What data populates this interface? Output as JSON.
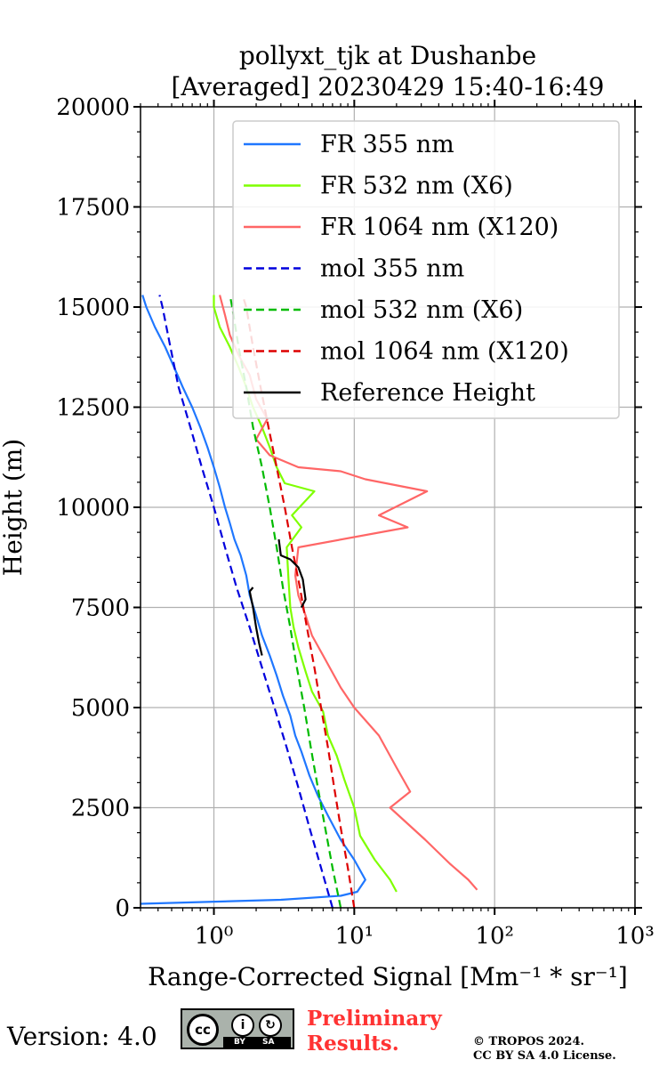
{
  "chart_data": {
    "type": "line",
    "title": [
      "pollyxt_tjk at Dushanbe",
      "[Averaged] 20230429 15:40-16:49"
    ],
    "xlabel": "Range-Corrected Signal [Mm⁻¹ * sr⁻¹]",
    "ylabel": "Height (m)",
    "xscale": "log",
    "xlim": [
      0.3,
      1000
    ],
    "ylim": [
      0,
      20000
    ],
    "xticks": [
      {
        "value": 1,
        "label": "10⁰"
      },
      {
        "value": 10,
        "label": "10¹"
      },
      {
        "value": 100,
        "label": "10²"
      },
      {
        "value": 1000,
        "label": "10³"
      }
    ],
    "yticks": [
      0,
      2500,
      5000,
      7500,
      10000,
      12500,
      15000,
      17500,
      20000
    ],
    "grid": true,
    "legend_position": "top-right",
    "series": [
      {
        "name": "FR 355 nm",
        "color": "#1f77ff",
        "style": "solid",
        "points": [
          [
            0.3,
            100
          ],
          [
            3,
            200
          ],
          [
            8,
            300
          ],
          [
            10.5,
            400
          ],
          [
            12,
            700
          ],
          [
            10,
            1200
          ],
          [
            8,
            1700
          ],
          [
            6.5,
            2300
          ],
          [
            5.5,
            2800
          ],
          [
            4.8,
            3300
          ],
          [
            4.2,
            3900
          ],
          [
            3.8,
            4300
          ],
          [
            3.5,
            4800
          ],
          [
            3.1,
            5300
          ],
          [
            2.8,
            5800
          ],
          [
            2.5,
            6300
          ],
          [
            2.2,
            6800
          ],
          [
            2.0,
            7300
          ],
          [
            1.8,
            7800
          ],
          [
            1.7,
            8300
          ],
          [
            1.55,
            8800
          ],
          [
            1.4,
            9200
          ],
          [
            1.3,
            9600
          ],
          [
            1.2,
            10000
          ],
          [
            1.1,
            10500
          ],
          [
            1.0,
            11000
          ],
          [
            0.9,
            11500
          ],
          [
            0.8,
            12000
          ],
          [
            0.7,
            12500
          ],
          [
            0.6,
            13000
          ],
          [
            0.52,
            13500
          ],
          [
            0.45,
            14000
          ],
          [
            0.38,
            14500
          ],
          [
            0.33,
            15000
          ],
          [
            0.31,
            15300
          ]
        ]
      },
      {
        "name": "FR 532 nm (X6)",
        "color": "#7fff00",
        "style": "solid",
        "points": [
          [
            20,
            400
          ],
          [
            18,
            700
          ],
          [
            14,
            1200
          ],
          [
            11,
            1800
          ],
          [
            10,
            2500
          ],
          [
            8.5,
            3200
          ],
          [
            7.5,
            3800
          ],
          [
            6.5,
            4300
          ],
          [
            6,
            4900
          ],
          [
            5,
            5400
          ],
          [
            4.5,
            5900
          ],
          [
            4,
            6500
          ],
          [
            3.7,
            7000
          ],
          [
            3.5,
            7500
          ],
          [
            3.4,
            8200
          ],
          [
            3.3,
            9000
          ],
          [
            4.2,
            9500
          ],
          [
            3.6,
            9800
          ],
          [
            5.2,
            10400
          ],
          [
            3.2,
            10600
          ],
          [
            2.8,
            11000
          ],
          [
            2.5,
            11500
          ],
          [
            2.2,
            12000
          ],
          [
            1.9,
            12500
          ],
          [
            1.7,
            13000
          ],
          [
            1.5,
            13500
          ],
          [
            1.3,
            14000
          ],
          [
            1.1,
            14500
          ],
          [
            1.0,
            15000
          ],
          [
            1.0,
            15300
          ]
        ]
      },
      {
        "name": "FR 1064 nm (X120)",
        "color": "#ff6666",
        "style": "solid",
        "points": [
          [
            75,
            450
          ],
          [
            65,
            700
          ],
          [
            48,
            1100
          ],
          [
            32,
            1700
          ],
          [
            18,
            2500
          ],
          [
            25,
            2900
          ],
          [
            20,
            3500
          ],
          [
            15,
            4300
          ],
          [
            10,
            5000
          ],
          [
            8,
            5500
          ],
          [
            6,
            6300
          ],
          [
            5,
            6800
          ],
          [
            4.5,
            7300
          ],
          [
            4,
            7800
          ],
          [
            3.8,
            8300
          ],
          [
            4,
            9000
          ],
          [
            24,
            9500
          ],
          [
            15,
            9800
          ],
          [
            33,
            10400
          ],
          [
            12,
            10700
          ],
          [
            8,
            10900
          ],
          [
            4,
            11000
          ],
          [
            2.5,
            11300
          ],
          [
            2,
            11700
          ],
          [
            2.4,
            12200
          ],
          [
            2.0,
            12700
          ],
          [
            1.8,
            13300
          ],
          [
            1.5,
            13800
          ],
          [
            1.3,
            14300
          ],
          [
            1.2,
            14800
          ],
          [
            1.1,
            15300
          ]
        ]
      },
      {
        "name": "mol 355 nm",
        "color": "#0000dd",
        "style": "dashed",
        "points": [
          [
            7,
            0
          ],
          [
            5.8,
            1000
          ],
          [
            4.8,
            2000
          ],
          [
            4.0,
            3000
          ],
          [
            3.3,
            4000
          ],
          [
            2.7,
            5000
          ],
          [
            2.2,
            6000
          ],
          [
            1.8,
            7000
          ],
          [
            1.45,
            8000
          ],
          [
            1.2,
            9000
          ],
          [
            1.0,
            10000
          ],
          [
            0.82,
            11000
          ],
          [
            0.68,
            12000
          ],
          [
            0.56,
            13000
          ],
          [
            0.49,
            14000
          ],
          [
            0.43,
            15000
          ],
          [
            0.41,
            15300
          ]
        ]
      },
      {
        "name": "mol 532 nm (X6)",
        "color": "#00bb00",
        "style": "dashed",
        "points": [
          [
            8,
            0
          ],
          [
            7,
            1000
          ],
          [
            6.2,
            2000
          ],
          [
            5.5,
            3000
          ],
          [
            4.9,
            4000
          ],
          [
            4.4,
            5000
          ],
          [
            3.9,
            6000
          ],
          [
            3.5,
            7000
          ],
          [
            3.1,
            8000
          ],
          [
            2.8,
            9000
          ],
          [
            2.5,
            10000
          ],
          [
            2.2,
            11000
          ],
          [
            1.9,
            12000
          ],
          [
            1.7,
            13000
          ],
          [
            1.5,
            14000
          ],
          [
            1.35,
            15000
          ],
          [
            1.3,
            15300
          ]
        ]
      },
      {
        "name": "mol 1064 nm (X120)",
        "color": "#dd0000",
        "style": "dashed",
        "points": [
          [
            10,
            0
          ],
          [
            9,
            1000
          ],
          [
            8,
            2000
          ],
          [
            7.2,
            3000
          ],
          [
            6.5,
            4000
          ],
          [
            5.8,
            5000
          ],
          [
            5.2,
            6000
          ],
          [
            4.6,
            7000
          ],
          [
            4.1,
            8000
          ],
          [
            3.6,
            9000
          ],
          [
            3.2,
            10000
          ],
          [
            2.8,
            11000
          ],
          [
            2.45,
            12000
          ],
          [
            2.15,
            13000
          ],
          [
            1.9,
            14000
          ],
          [
            1.7,
            15000
          ],
          [
            1.6,
            15300
          ]
        ]
      },
      {
        "name": "Reference Height",
        "color": "#000000",
        "style": "solid",
        "segments": [
          [
            [
              2.2,
              6300
            ],
            [
              2.1,
              6600
            ],
            [
              2.0,
              7000
            ],
            [
              1.9,
              7500
            ],
            [
              1.8,
              7900
            ],
            [
              1.9,
              8000
            ]
          ],
          [
            [
              4.2,
              7500
            ],
            [
              4.5,
              7700
            ],
            [
              4.3,
              8200
            ],
            [
              4.0,
              8500
            ],
            [
              3.5,
              8700
            ],
            [
              3.0,
              8800
            ],
            [
              2.9,
              9200
            ]
          ]
        ]
      }
    ]
  },
  "footer": {
    "version": "Version: 4.0",
    "license_badge": {
      "cc": "cc",
      "by": "BY",
      "sa": "SA"
    },
    "preliminary": [
      "Preliminary",
      "Results."
    ],
    "copyright": [
      "© TROPOS 2024.",
      "CC BY SA 4.0 License."
    ]
  }
}
